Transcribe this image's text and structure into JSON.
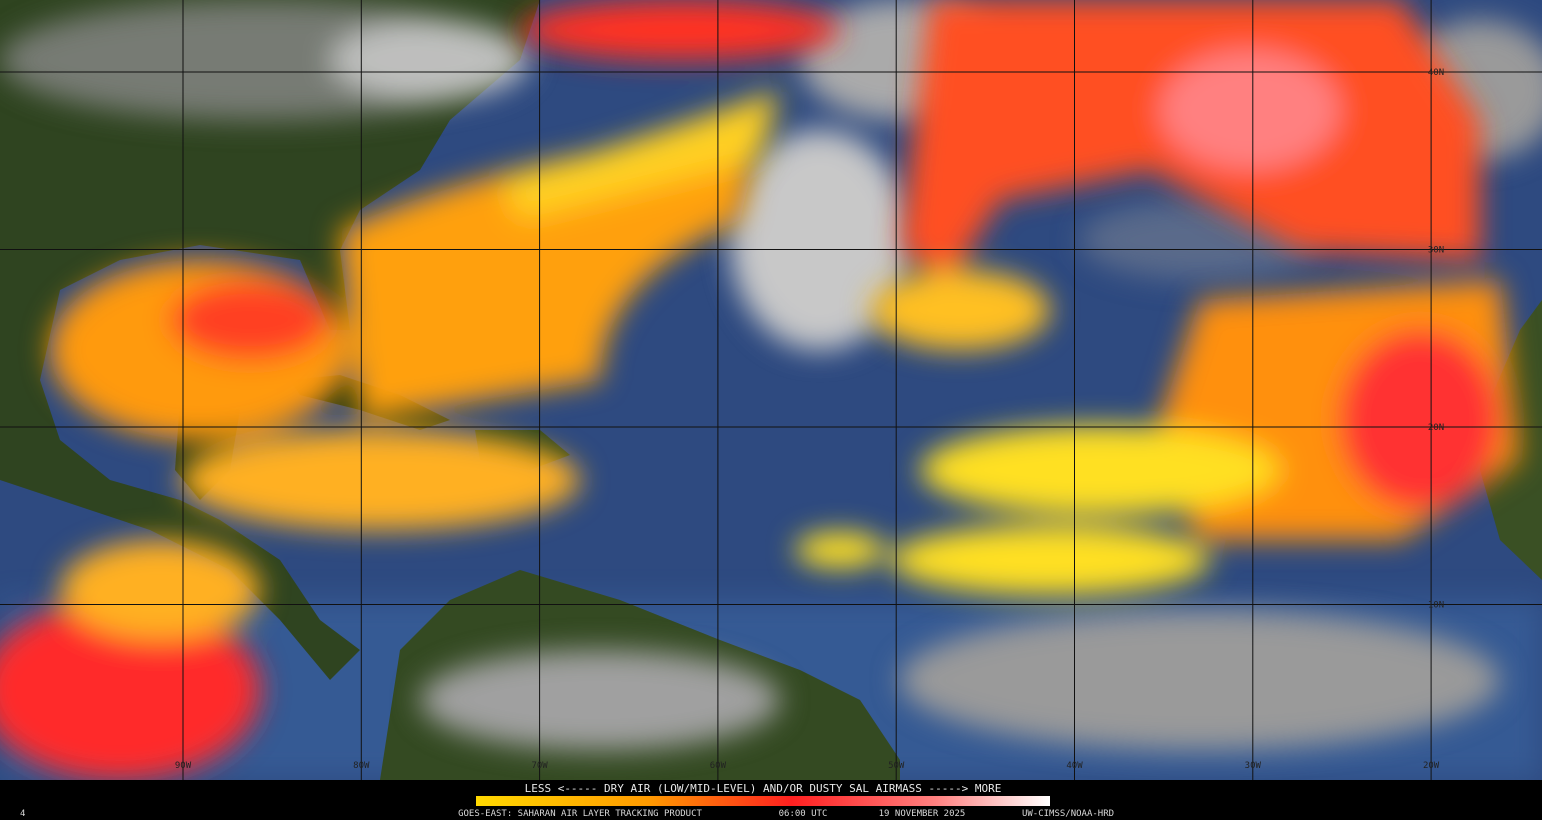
{
  "map": {
    "lat_labels": [
      "40N",
      "30N",
      "20N",
      "10N"
    ],
    "lon_labels": [
      "90W",
      "80W",
      "70W",
      "60W",
      "50W",
      "40W",
      "30W",
      "20W"
    ]
  },
  "legend": {
    "caption": "LESS <----- DRY AIR (LOW/MID-LEVEL) AND/OR DUSTY SAL AIRMASS -----> MORE"
  },
  "footer": {
    "frame": "4",
    "product": "GOES-EAST: SAHARAN AIR LAYER TRACKING PRODUCT",
    "time": "06:00 UTC",
    "date": "19 NOVEMBER 2025",
    "credit": "UW-CIMSS/NOAA-HRD"
  }
}
